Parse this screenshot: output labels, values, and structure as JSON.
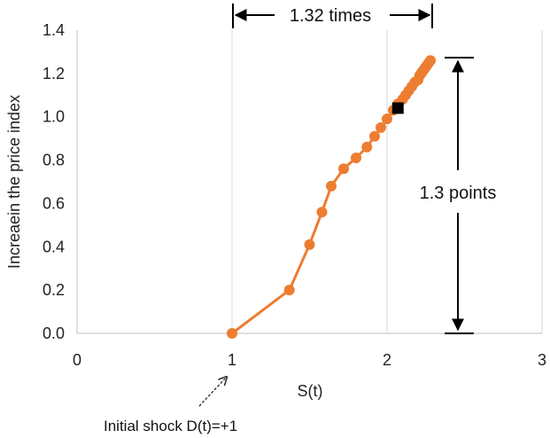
{
  "chart_data": {
    "type": "scatter",
    "xlabel": "S(t)",
    "ylabel": "Increaein the price index",
    "xlim": [
      0,
      3
    ],
    "ylim": [
      0,
      1.4
    ],
    "xticks": [
      "0",
      "1",
      "2",
      "3"
    ],
    "yticks": [
      "0.0",
      "0.2",
      "0.4",
      "0.6",
      "0.8",
      "1.0",
      "1.2",
      "1.4"
    ],
    "grid": "vertical",
    "series": [
      {
        "color": "#ED7D31",
        "marker": "circle",
        "line": true,
        "x": [
          1.0,
          1.37,
          1.5,
          1.58,
          1.64,
          1.72,
          1.8,
          1.87,
          1.92,
          1.96,
          2.0,
          2.04,
          2.07,
          2.1,
          2.12,
          2.14,
          2.16,
          2.18,
          2.2,
          2.21,
          2.22,
          2.23,
          2.24,
          2.25,
          2.26,
          2.27,
          2.28
        ],
        "y": [
          0.0,
          0.2,
          0.41,
          0.56,
          0.68,
          0.76,
          0.81,
          0.86,
          0.91,
          0.95,
          0.99,
          1.03,
          1.06,
          1.08,
          1.1,
          1.12,
          1.14,
          1.16,
          1.17,
          1.19,
          1.2,
          1.21,
          1.22,
          1.23,
          1.24,
          1.25,
          1.26
        ]
      }
    ],
    "highlight_point": {
      "x": 2.07,
      "y": 1.04,
      "color": "#000000",
      "marker": "square"
    },
    "annotations": {
      "times_label": "1.32 times",
      "points_label": "1.3 points",
      "shock_label": "Initial shock D(t)=+1"
    }
  }
}
